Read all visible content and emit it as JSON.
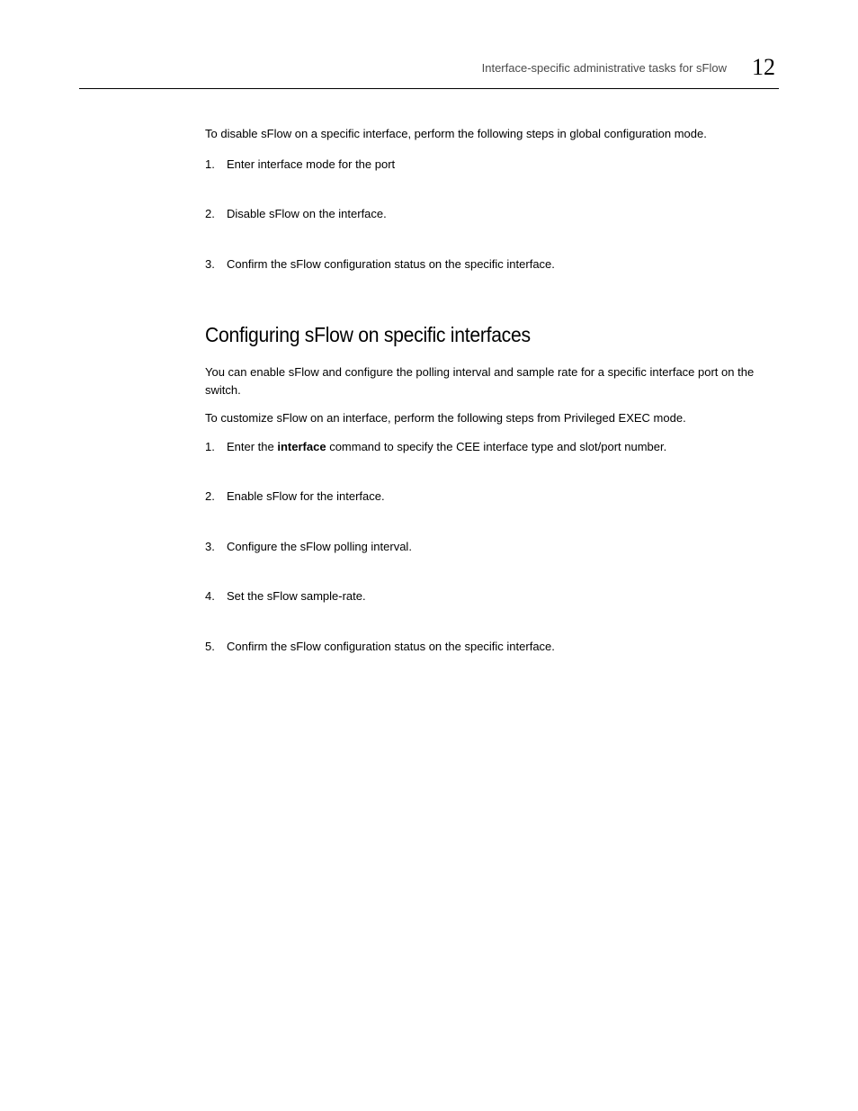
{
  "header": {
    "title": "Interface-specific administrative tasks for sFlow",
    "chapter_number": "12"
  },
  "section1": {
    "intro": "To disable sFlow on a specific interface, perform the following steps in global configuration mode.",
    "steps": [
      {
        "n": "1.",
        "text": "Enter interface mode for the port"
      },
      {
        "n": "2.",
        "text": "Disable sFlow on the interface."
      },
      {
        "n": "3.",
        "text": "Confirm the sFlow configuration status on the specific interface."
      }
    ]
  },
  "section2": {
    "heading": "Configuring sFlow on specific interfaces",
    "para1": "You can enable sFlow and configure the polling interval and sample rate for a specific interface port on the switch.",
    "para2": "To customize sFlow on an interface, perform the following steps from Privileged EXEC mode.",
    "step1": {
      "n": "1.",
      "pre": "Enter the ",
      "bold": "interface",
      "post": " command to specify the CEE interface type and slot/port number."
    },
    "steps_rest": [
      {
        "n": "2.",
        "text": "Enable sFlow for the interface."
      },
      {
        "n": "3.",
        "text": "Configure the sFlow polling interval."
      },
      {
        "n": "4.",
        "text": "Set the sFlow sample-rate."
      },
      {
        "n": "5.",
        "text": "Confirm the sFlow configuration status on the specific interface."
      }
    ]
  }
}
